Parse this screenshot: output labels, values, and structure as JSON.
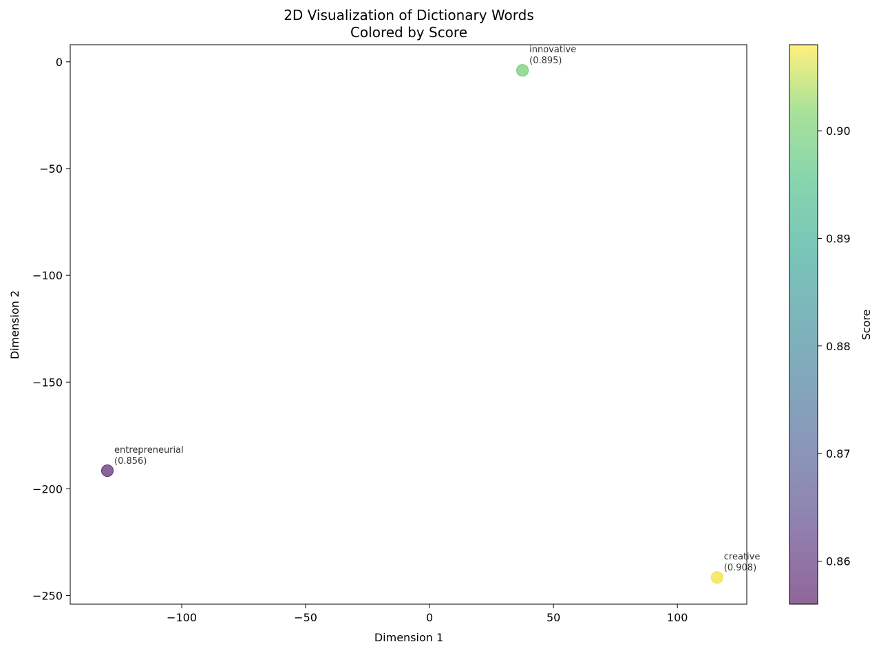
{
  "chart_data": {
    "type": "scatter",
    "title": "2D Visualization of Dictionary Words",
    "subtitle": "Colored by Score",
    "xlabel": "Dimension 1",
    "ylabel": "Dimension 2",
    "xlim": [
      -145,
      128
    ],
    "ylim": [
      -254,
      8
    ],
    "xticks": [
      -100,
      -50,
      0,
      50,
      100
    ],
    "yticks": [
      0,
      -50,
      -100,
      -150,
      -200,
      -250
    ],
    "xtick_labels": [
      "−100",
      "−50",
      "0",
      "50",
      "100"
    ],
    "ytick_labels": [
      "0",
      "−50",
      "−100",
      "−150",
      "−200",
      "−250"
    ],
    "grid": false,
    "points": [
      {
        "word": "innovative",
        "score_label": "(0.895)",
        "score": 0.895,
        "x": 37.5,
        "y": -4,
        "color": "#7fcf7f"
      },
      {
        "word": "entrepreneurial",
        "score_label": "(0.856)",
        "score": 0.856,
        "x": -130,
        "y": -191.5,
        "color": "#6b3f82"
      },
      {
        "word": "creative",
        "score_label": "(0.908)",
        "score": 0.908,
        "x": 116,
        "y": -241.5,
        "color": "#f5e44c"
      }
    ],
    "colorbar": {
      "label": "Score",
      "colormap": "viridis",
      "range": [
        0.856,
        0.908
      ],
      "ticks": [
        0.86,
        0.87,
        0.88,
        0.89,
        0.9
      ],
      "tick_labels": [
        "0.86",
        "0.87",
        "0.88",
        "0.89",
        "0.90"
      ]
    }
  }
}
